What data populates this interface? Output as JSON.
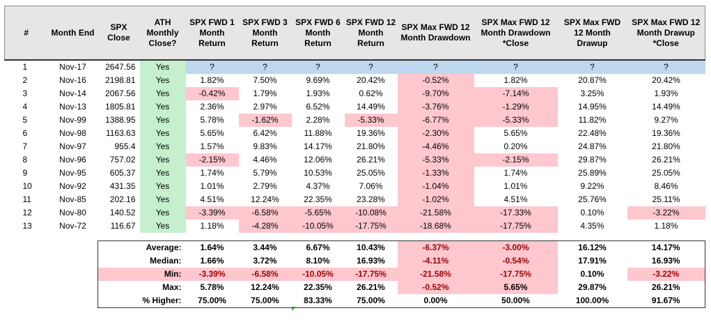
{
  "headers": [
    "#",
    "Month End",
    "SPX Close",
    "ATH Monthly Close?",
    "SPX FWD 1 Month Return",
    "SPX FWD 3 Month Return",
    "SPX FWD 6 Month Return",
    "SPX FWD 12 Month Return",
    "SPX Max FWD 12 Month Drawdown",
    "SPX Max FWD 12 Month Drawdown *Close",
    "SPX Max FWD 12 Month Drawup",
    "SPX Max FWD 12 Month Drawup *Close"
  ],
  "rows": [
    {
      "idx": "1",
      "month": "Nov-17",
      "close": "2647.56",
      "ath": "Yes",
      "vals": [
        "?",
        "?",
        "?",
        "?",
        "?",
        "?",
        "?",
        "?"
      ]
    },
    {
      "idx": "2",
      "month": "Nov-16",
      "close": "2198.81",
      "ath": "Yes",
      "vals": [
        "1.82%",
        "7.50%",
        "9.69%",
        "20.42%",
        "-0.52%",
        "1.82%",
        "20.87%",
        "20.42%"
      ]
    },
    {
      "idx": "3",
      "month": "Nov-14",
      "close": "2067.56",
      "ath": "Yes",
      "vals": [
        "-0.42%",
        "1.79%",
        "1.93%",
        "0.62%",
        "-9.70%",
        "-7.14%",
        "3.25%",
        "1.93%"
      ]
    },
    {
      "idx": "4",
      "month": "Nov-13",
      "close": "1805.81",
      "ath": "Yes",
      "vals": [
        "2.36%",
        "2.97%",
        "6.52%",
        "14.49%",
        "-3.76%",
        "-1.29%",
        "14.95%",
        "14.49%"
      ]
    },
    {
      "idx": "5",
      "month": "Nov-99",
      "close": "1388.95",
      "ath": "Yes",
      "vals": [
        "5.78%",
        "-1.62%",
        "2.28%",
        "-5.33%",
        "-6.77%",
        "-5.33%",
        "11.82%",
        "9.27%"
      ]
    },
    {
      "idx": "6",
      "month": "Nov-98",
      "close": "1163.63",
      "ath": "Yes",
      "vals": [
        "5.65%",
        "6.42%",
        "11.88%",
        "19.36%",
        "-2.30%",
        "5.65%",
        "22.48%",
        "19.36%"
      ]
    },
    {
      "idx": "7",
      "month": "Nov-97",
      "close": "955.4",
      "ath": "Yes",
      "vals": [
        "1.57%",
        "9.83%",
        "14.17%",
        "21.80%",
        "-4.46%",
        "0.20%",
        "24.87%",
        "21.80%"
      ]
    },
    {
      "idx": "8",
      "month": "Nov-96",
      "close": "757.02",
      "ath": "Yes",
      "vals": [
        "-2.15%",
        "4.46%",
        "12.06%",
        "26.21%",
        "-5.33%",
        "-2.15%",
        "29.87%",
        "26.21%"
      ]
    },
    {
      "idx": "9",
      "month": "Nov-95",
      "close": "605.37",
      "ath": "Yes",
      "vals": [
        "1.74%",
        "5.79%",
        "10.53%",
        "25.05%",
        "-1.33%",
        "1.74%",
        "25.89%",
        "25.05%"
      ]
    },
    {
      "idx": "10",
      "month": "Nov-92",
      "close": "431.35",
      "ath": "Yes",
      "vals": [
        "1.01%",
        "2.79%",
        "4.37%",
        "7.06%",
        "-1.04%",
        "1.01%",
        "9.22%",
        "8.46%"
      ]
    },
    {
      "idx": "11",
      "month": "Nov-85",
      "close": "202.16",
      "ath": "Yes",
      "vals": [
        "4.51%",
        "12.24%",
        "22.35%",
        "23.28%",
        "-1.02%",
        "4.51%",
        "25.76%",
        "25.11%"
      ]
    },
    {
      "idx": "12",
      "month": "Nov-80",
      "close": "140.52",
      "ath": "Yes",
      "vals": [
        "-3.39%",
        "-6.58%",
        "-5.65%",
        "-10.08%",
        "-21.58%",
        "-17.33%",
        "0.10%",
        "-3.22%"
      ]
    },
    {
      "idx": "13",
      "month": "Nov-72",
      "close": "116.67",
      "ath": "Yes",
      "vals": [
        "1.18%",
        "-4.28%",
        "-10.05%",
        "-17.75%",
        "-18.68%",
        "-17.75%",
        "4.35%",
        "1.18%"
      ]
    }
  ],
  "stats": [
    {
      "label": "Average:",
      "vals": [
        "1.64%",
        "3.44%",
        "6.67%",
        "10.43%",
        "-6.37%",
        "-3.00%",
        "16.12%",
        "14.17%"
      ]
    },
    {
      "label": "Median:",
      "vals": [
        "1.66%",
        "3.72%",
        "8.10%",
        "16.93%",
        "-4.11%",
        "-0.54%",
        "17.91%",
        "16.93%"
      ]
    },
    {
      "label": "Min:",
      "vals": [
        "-3.39%",
        "-6.58%",
        "-10.05%",
        "-17.75%",
        "-21.58%",
        "-17.75%",
        "0.10%",
        "-3.22%"
      ]
    },
    {
      "label": "Max:",
      "vals": [
        "5.78%",
        "12.24%",
        "22.35%",
        "26.21%",
        "-0.52%",
        "5.65%",
        "29.87%",
        "26.21%"
      ]
    },
    {
      "label": "% Higher:",
      "vals": [
        "75.00%",
        "75.00%",
        "83.33%",
        "75.00%",
        "0.00%",
        "50.00%",
        "100.00%",
        "91.67%"
      ]
    }
  ],
  "colors": {
    "header_bg": "#e6e6e6",
    "yes_fill": "#c6efce",
    "neg_fill": "#ffc7ce",
    "neg_text": "#9c0006",
    "pending_fill": "#bdd7ee"
  }
}
